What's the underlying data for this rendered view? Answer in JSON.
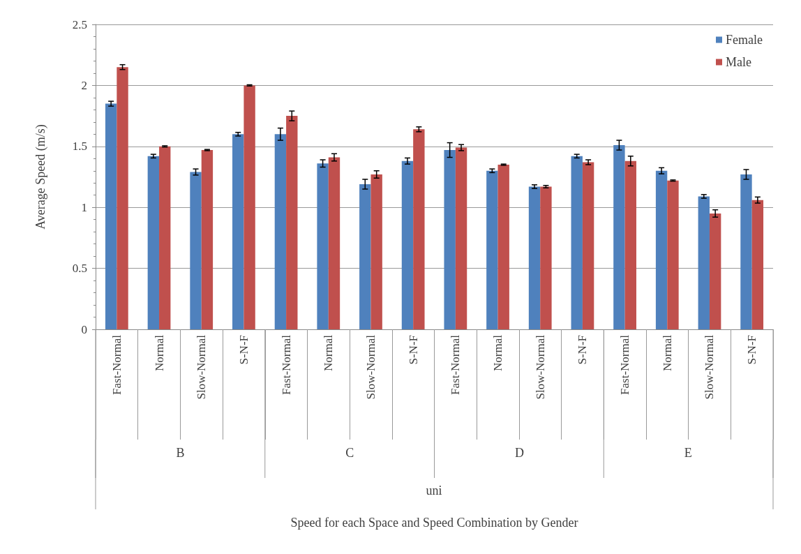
{
  "chart_data": {
    "type": "bar",
    "ylabel": "Average Speed (m/s)",
    "categories": [
      "Fast-Normal",
      "Normal",
      "Slow-Normal",
      "S-N-F",
      "Fast-Normal",
      "Normal",
      "Slow-Normal",
      "S-N-F",
      "Fast-Normal",
      "Normal",
      "Slow-Normal",
      "S-N-F",
      "Fast-Normal",
      "Normal",
      "Slow-Normal",
      "S-N-F"
    ],
    "series": [
      {
        "name": "Female",
        "color": "#4f81bd",
        "values": [
          1.85,
          1.42,
          1.29,
          1.6,
          1.6,
          1.36,
          1.19,
          1.38,
          1.47,
          1.3,
          1.17,
          1.42,
          1.51,
          1.3,
          1.09,
          1.27
        ],
        "errors": [
          0.02,
          0.015,
          0.025,
          0.015,
          0.05,
          0.03,
          0.04,
          0.025,
          0.06,
          0.015,
          0.015,
          0.015,
          0.04,
          0.025,
          0.015,
          0.04
        ]
      },
      {
        "name": "Male",
        "color": "#c0504d",
        "values": [
          2.15,
          1.5,
          1.47,
          2.0,
          1.75,
          1.41,
          1.27,
          1.64,
          1.49,
          1.35,
          1.17,
          1.37,
          1.38,
          1.22,
          0.95,
          1.06
        ],
        "errors": [
          0.02,
          0.005,
          0.005,
          0.005,
          0.04,
          0.03,
          0.03,
          0.02,
          0.025,
          0.005,
          0.01,
          0.02,
          0.04,
          0.005,
          0.03,
          0.025
        ]
      }
    ],
    "annotations": [
      "B",
      "C",
      "D",
      "E",
      "uni",
      "Speed for each Space and Speed Combination by Gender"
    ],
    "ylim": [
      0,
      2.5
    ],
    "yticks": [
      0,
      0.5,
      1,
      1.5,
      2,
      2.5
    ],
    "grid": "y",
    "legend": "top right"
  }
}
